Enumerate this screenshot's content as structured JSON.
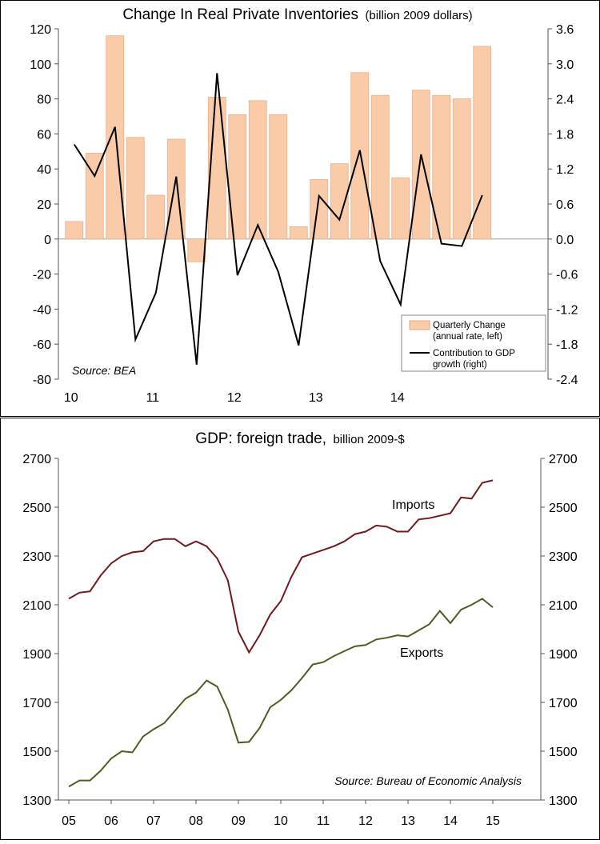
{
  "chart_data": [
    {
      "type": "bar",
      "title": "Change In Real Private Inventories",
      "title_suffix": "(billion 2009 dollars)",
      "source": "Source: BEA",
      "legend_position": "bottom-right",
      "left_axis": {
        "range": [
          -80,
          120
        ],
        "ticks": [
          "120",
          "100",
          "80",
          "60",
          "40",
          "20",
          "0",
          "-20",
          "-40",
          "-60",
          "-80"
        ]
      },
      "right_axis": {
        "range": [
          -2.4,
          3.6
        ],
        "ticks": [
          "3.6",
          "3.0",
          "2.4",
          "1.8",
          "1.2",
          "0.6",
          "0.0",
          "-0.6",
          "-1.2",
          "-1.8",
          "-2.4"
        ]
      },
      "x_tick_labels": [
        "10",
        "11",
        "12",
        "13",
        "14"
      ],
      "x_tick_quarter_index": [
        0,
        4,
        8,
        12,
        16
      ],
      "series": [
        {
          "name": "Quarterly Change (annual rate, left)",
          "legend_lines": [
            "Quarterly Change",
            "(annual rate, left)"
          ],
          "axis": "left",
          "kind": "bar",
          "color": "#f9cba9",
          "values": [
            10,
            49,
            116,
            58,
            25,
            57,
            -13,
            81,
            71,
            79,
            71,
            7,
            34,
            43,
            95,
            82,
            35,
            85,
            82,
            80,
            110
          ]
        },
        {
          "name": "Contribution to GDP growth (right)",
          "legend_lines": [
            "Contribution to GDP",
            "growth (right)"
          ],
          "axis": "right",
          "kind": "line",
          "color": "#000000",
          "values": [
            1.62,
            1.08,
            1.92,
            -1.72,
            -0.92,
            1.07,
            -2.15,
            2.84,
            -0.62,
            0.24,
            -0.56,
            -1.82,
            0.74,
            0.33,
            1.52,
            -0.38,
            -1.12,
            1.45,
            -0.08,
            -0.12,
            0.75
          ]
        }
      ]
    },
    {
      "type": "line",
      "title": "GDP: foreign trade,",
      "title_suffix": "billion 2009-$",
      "source": "Source: Bureau of Economic Analysis",
      "y_axis": {
        "range": [
          1300,
          2700
        ],
        "ticks": [
          "2700",
          "2500",
          "2300",
          "2100",
          "1900",
          "1700",
          "1500",
          "1300"
        ]
      },
      "x_tick_labels": [
        "05",
        "06",
        "07",
        "08",
        "09",
        "10",
        "11",
        "12",
        "13",
        "14",
        "15"
      ],
      "x_tick_quarter_index": [
        0,
        4,
        8,
        12,
        16,
        20,
        24,
        28,
        32,
        36,
        40
      ],
      "series": [
        {
          "name": "Imports",
          "color": "#6e1b1b",
          "values": [
            2125,
            2150,
            2155,
            2220,
            2270,
            2300,
            2315,
            2320,
            2360,
            2370,
            2370,
            2340,
            2360,
            2340,
            2290,
            2200,
            1990,
            1905,
            1975,
            2060,
            2115,
            2215,
            2295,
            2310,
            2325,
            2340,
            2360,
            2390,
            2400,
            2425,
            2420,
            2400,
            2400,
            2450,
            2455,
            2465,
            2475,
            2540,
            2535,
            2600,
            2610
          ]
        },
        {
          "name": "Exports",
          "color": "#4a5e20",
          "values": [
            1355,
            1380,
            1380,
            1420,
            1470,
            1500,
            1495,
            1560,
            1590,
            1615,
            1665,
            1715,
            1740,
            1790,
            1765,
            1670,
            1535,
            1538,
            1595,
            1680,
            1710,
            1750,
            1800,
            1855,
            1865,
            1890,
            1910,
            1930,
            1935,
            1958,
            1965,
            1975,
            1970,
            1995,
            2020,
            2075,
            2025,
            2080,
            2100,
            2125,
            2090
          ]
        }
      ]
    }
  ]
}
